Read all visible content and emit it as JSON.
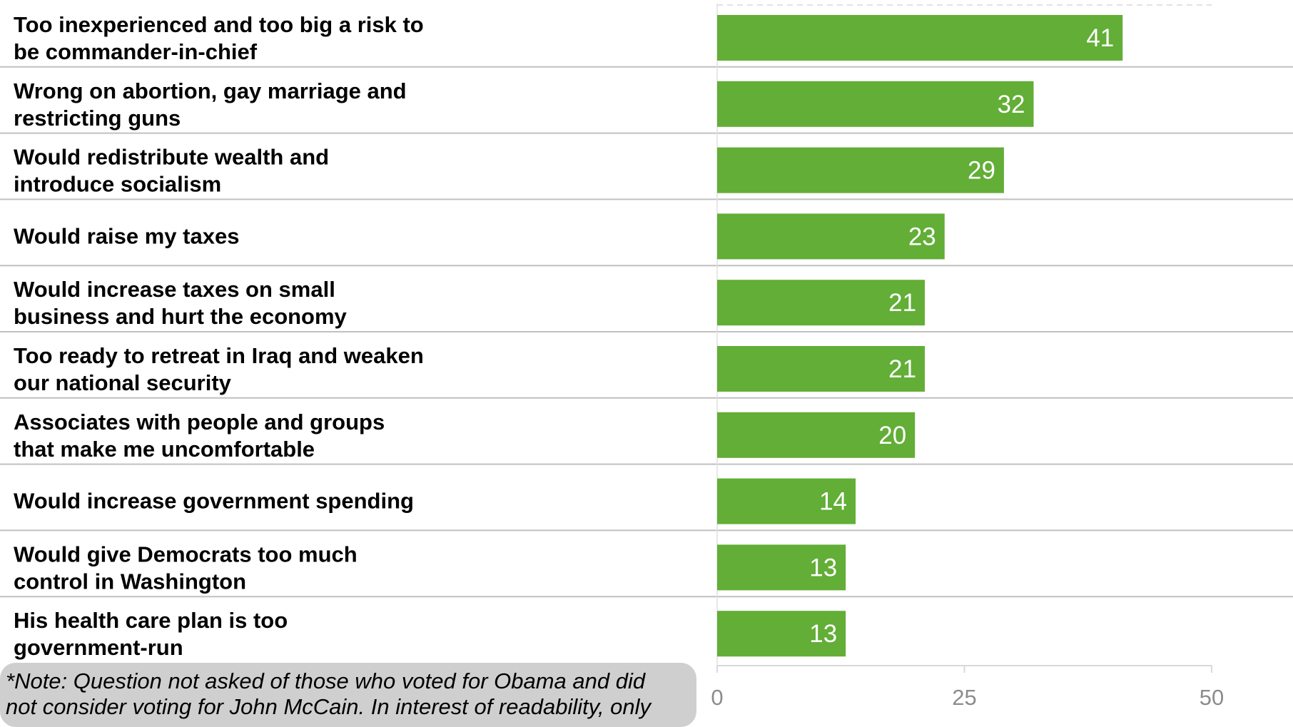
{
  "chart_data": {
    "type": "bar",
    "orientation": "horizontal",
    "categories": [
      [
        "Too inexperienced and too big a risk to",
        "be commander-in-chief"
      ],
      [
        "Wrong on abortion, gay marriage and",
        "restricting guns"
      ],
      [
        "Would redistribute wealth and",
        "introduce socialism"
      ],
      [
        "Would raise my taxes"
      ],
      [
        "Would increase taxes on small",
        "business and hurt the economy"
      ],
      [
        "Too ready to retreat in Iraq and weaken",
        "our national security"
      ],
      [
        "Associates with people and groups",
        "that make me uncomfortable"
      ],
      [
        "Would increase government spending"
      ],
      [
        "Would give Democrats too much",
        "control in Washington"
      ],
      [
        "His health care plan is too",
        "government-run"
      ]
    ],
    "values": [
      41,
      32,
      29,
      23,
      21,
      21,
      20,
      14,
      13,
      13
    ],
    "xlim": [
      0,
      50
    ],
    "xticks": [
      "0",
      "25",
      "50"
    ],
    "bar_color": "#62ae36",
    "grid": false
  },
  "note": {
    "lines": [
      "*Note: Question not asked of those who voted for Obama and did",
      "not consider voting for John McCain. In interest of readability, only"
    ]
  }
}
